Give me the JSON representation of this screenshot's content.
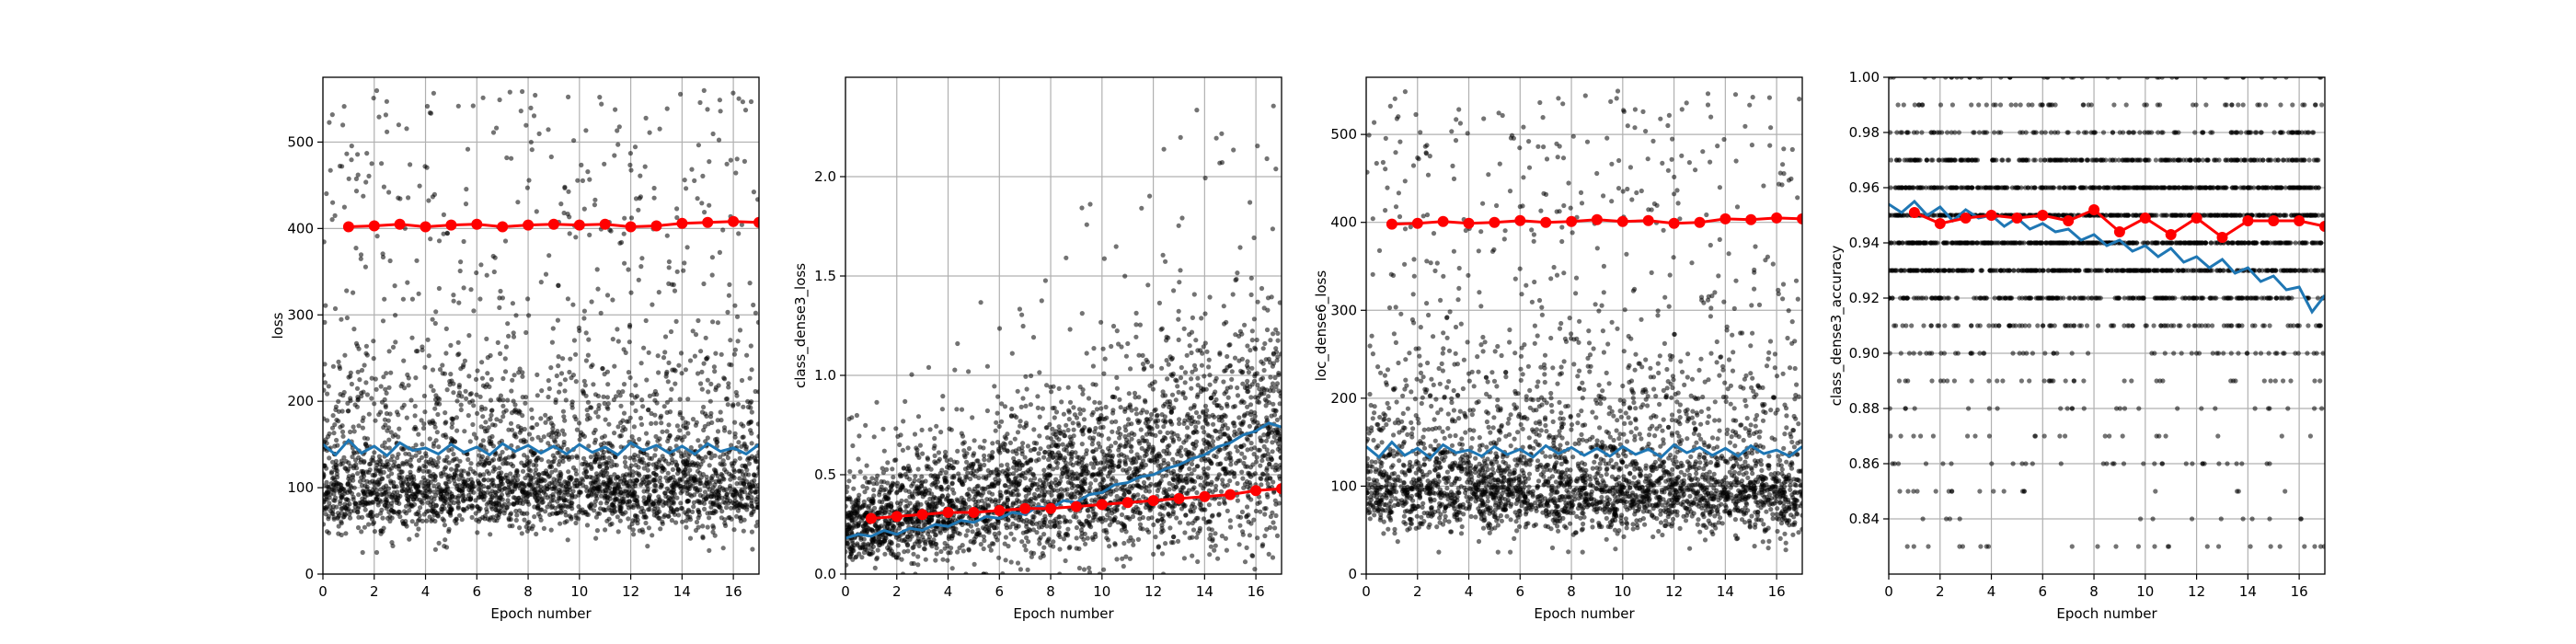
{
  "chart_data": [
    {
      "type": "scatter",
      "xlabel": "Epoch number",
      "ylabel": "loss",
      "xlim": [
        0,
        17
      ],
      "ylim": [
        0,
        575
      ],
      "xticks": [
        0,
        2,
        4,
        6,
        8,
        10,
        12,
        14,
        16
      ],
      "yticks": [
        0,
        100,
        200,
        300,
        400,
        500
      ],
      "ytick_labels": [
        "0",
        "100",
        "200",
        "300",
        "400",
        "500"
      ],
      "grid": true,
      "scatter_cloud": {
        "color": "#000000",
        "center": 95,
        "spread": 40,
        "tail_max": 560
      },
      "series": [
        {
          "kind": "validation",
          "color": "#ff0000",
          "x": [
            1,
            2,
            3,
            4,
            5,
            6,
            7,
            8,
            9,
            10,
            11,
            12,
            13,
            14,
            15,
            16,
            17
          ],
          "y": [
            402,
            403,
            405,
            402,
            404,
            405,
            402,
            404,
            405,
            404,
            405,
            402,
            403,
            406,
            407,
            408,
            407
          ]
        },
        {
          "kind": "running-mean",
          "color": "#1f77b4",
          "x": [
            0,
            0.5,
            1,
            1.5,
            2,
            2.5,
            3,
            3.5,
            4,
            4.5,
            5,
            5.5,
            6,
            6.5,
            7,
            7.5,
            8,
            8.5,
            9,
            9.5,
            10,
            10.5,
            11,
            11.5,
            12,
            12.5,
            13,
            13.5,
            14,
            14.5,
            15,
            15.5,
            16,
            16.5,
            17
          ],
          "y": [
            150,
            138,
            155,
            140,
            148,
            137,
            152,
            143,
            146,
            139,
            150,
            141,
            147,
            138,
            151,
            142,
            149,
            140,
            148,
            139,
            150,
            141,
            147,
            138,
            152,
            143,
            149,
            140,
            148,
            139,
            151,
            142,
            146,
            139,
            150
          ]
        }
      ]
    },
    {
      "type": "scatter",
      "xlabel": "Epoch number",
      "ylabel": "class_dense3_loss",
      "xlim": [
        0,
        17
      ],
      "ylim": [
        0,
        2.5
      ],
      "xticks": [
        0,
        2,
        4,
        6,
        8,
        10,
        12,
        14,
        16
      ],
      "yticks": [
        0.0,
        0.5,
        1.0,
        1.5,
        2.0
      ],
      "ytick_labels": [
        "0.0",
        "0.5",
        "1.0",
        "1.5",
        "2.0"
      ],
      "grid": true,
      "scatter_cloud": {
        "color": "#000000",
        "center_start": 0.2,
        "center_end": 0.6,
        "spread_start": 0.12,
        "spread_end": 0.4,
        "tail_max": 2.4
      },
      "series": [
        {
          "kind": "validation",
          "color": "#ff0000",
          "x": [
            1,
            2,
            3,
            4,
            5,
            6,
            7,
            8,
            9,
            10,
            11,
            12,
            13,
            14,
            15,
            16,
            17
          ],
          "y": [
            0.28,
            0.29,
            0.3,
            0.31,
            0.31,
            0.32,
            0.33,
            0.33,
            0.34,
            0.35,
            0.36,
            0.37,
            0.38,
            0.39,
            0.4,
            0.42,
            0.43
          ]
        },
        {
          "kind": "running-mean",
          "color": "#1f77b4",
          "x": [
            0,
            0.5,
            1,
            1.5,
            2,
            2.5,
            3,
            3.5,
            4,
            4.5,
            5,
            5.5,
            6,
            6.5,
            7,
            7.5,
            8,
            8.5,
            9,
            9.5,
            10,
            10.5,
            11,
            11.5,
            12,
            12.5,
            13,
            13.5,
            14,
            14.5,
            15,
            15.5,
            16,
            16.5,
            17
          ],
          "y": [
            0.18,
            0.2,
            0.19,
            0.22,
            0.2,
            0.23,
            0.22,
            0.25,
            0.24,
            0.27,
            0.26,
            0.29,
            0.28,
            0.31,
            0.3,
            0.34,
            0.33,
            0.37,
            0.36,
            0.4,
            0.41,
            0.45,
            0.46,
            0.49,
            0.5,
            0.53,
            0.55,
            0.58,
            0.6,
            0.64,
            0.66,
            0.7,
            0.72,
            0.76,
            0.74
          ]
        }
      ]
    },
    {
      "type": "scatter",
      "xlabel": "Epoch number",
      "ylabel": "loc_dense6_loss",
      "xlim": [
        0,
        17
      ],
      "ylim": [
        0,
        565
      ],
      "xticks": [
        0,
        2,
        4,
        6,
        8,
        10,
        12,
        14,
        16
      ],
      "yticks": [
        0,
        100,
        200,
        300,
        400,
        500
      ],
      "ytick_labels": [
        "0",
        "100",
        "200",
        "300",
        "400",
        "500"
      ],
      "grid": true,
      "scatter_cloud": {
        "color": "#000000",
        "center": 90,
        "spread": 38,
        "tail_max": 550
      },
      "series": [
        {
          "kind": "validation",
          "color": "#ff0000",
          "x": [
            1,
            2,
            3,
            4,
            5,
            6,
            7,
            8,
            9,
            10,
            11,
            12,
            13,
            14,
            15,
            16,
            17
          ],
          "y": [
            398,
            399,
            401,
            399,
            400,
            402,
            400,
            401,
            403,
            401,
            402,
            399,
            400,
            404,
            403,
            405,
            404
          ]
        },
        {
          "kind": "running-mean",
          "color": "#1f77b4",
          "x": [
            0,
            0.5,
            1,
            1.5,
            2,
            2.5,
            3,
            3.5,
            4,
            4.5,
            5,
            5.5,
            6,
            6.5,
            7,
            7.5,
            8,
            8.5,
            9,
            9.5,
            10,
            10.5,
            11,
            11.5,
            12,
            12.5,
            13,
            13.5,
            14,
            14.5,
            15,
            15.5,
            16,
            16.5,
            17
          ],
          "y": [
            145,
            133,
            150,
            135,
            143,
            132,
            147,
            138,
            141,
            134,
            145,
            136,
            142,
            133,
            146,
            137,
            144,
            135,
            143,
            134,
            145,
            136,
            142,
            133,
            147,
            138,
            144,
            135,
            143,
            134,
            146,
            137,
            141,
            134,
            145
          ]
        }
      ]
    },
    {
      "type": "scatter",
      "xlabel": "Epoch number",
      "ylabel": "class_dense3_accuracy",
      "xlim": [
        0,
        17
      ],
      "ylim": [
        0.82,
        1.0
      ],
      "xticks": [
        0,
        2,
        4,
        6,
        8,
        10,
        12,
        14,
        16
      ],
      "yticks": [
        0.84,
        0.86,
        0.88,
        0.9,
        0.92,
        0.94,
        0.96,
        0.98,
        1.0
      ],
      "ytick_labels": [
        "0.84",
        "0.86",
        "0.88",
        "0.90",
        "0.92",
        "0.94",
        "0.96",
        "0.98",
        "1.00"
      ],
      "grid": true,
      "scatter_cloud": {
        "color": "#000000",
        "discrete_levels": [
          0.83,
          0.84,
          0.85,
          0.86,
          0.87,
          0.88,
          0.89,
          0.9,
          0.91,
          0.92,
          0.93,
          0.94,
          0.95,
          0.96,
          0.97,
          0.98,
          0.99,
          1.0
        ]
      },
      "series": [
        {
          "kind": "validation",
          "color": "#ff0000",
          "x": [
            1,
            2,
            3,
            4,
            5,
            6,
            7,
            8,
            9,
            10,
            11,
            12,
            13,
            14,
            15,
            16,
            17
          ],
          "y": [
            0.951,
            0.947,
            0.949,
            0.95,
            0.949,
            0.95,
            0.948,
            0.952,
            0.944,
            0.949,
            0.943,
            0.949,
            0.942,
            0.948,
            0.948,
            0.948,
            0.946
          ]
        },
        {
          "kind": "running-mean",
          "color": "#1f77b4",
          "x": [
            0,
            0.5,
            1,
            1.5,
            2,
            2.5,
            3,
            3.5,
            4,
            4.5,
            5,
            5.5,
            6,
            6.5,
            7,
            7.5,
            8,
            8.5,
            9,
            9.5,
            10,
            10.5,
            11,
            11.5,
            12,
            12.5,
            13,
            13.5,
            14,
            14.5,
            15,
            15.5,
            16,
            16.5,
            17
          ],
          "y": [
            0.954,
            0.951,
            0.955,
            0.95,
            0.953,
            0.948,
            0.952,
            0.949,
            0.95,
            0.946,
            0.949,
            0.945,
            0.947,
            0.944,
            0.945,
            0.941,
            0.943,
            0.939,
            0.941,
            0.937,
            0.939,
            0.935,
            0.938,
            0.933,
            0.935,
            0.931,
            0.934,
            0.929,
            0.931,
            0.926,
            0.928,
            0.923,
            0.924,
            0.915,
            0.921
          ]
        }
      ]
    }
  ]
}
